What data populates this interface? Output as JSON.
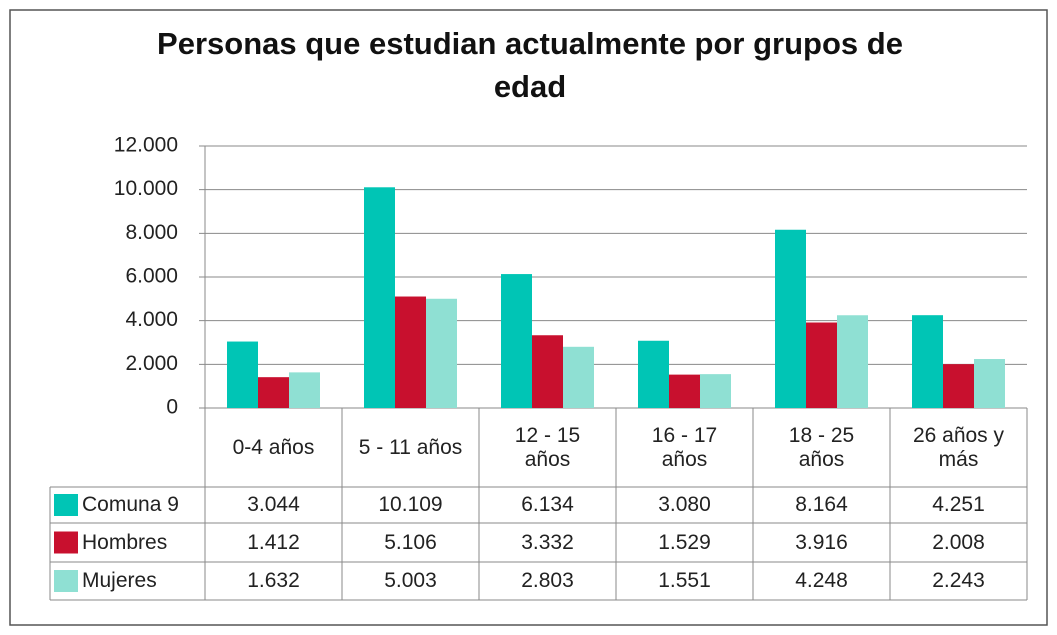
{
  "chart_data": {
    "type": "bar",
    "title": "Personas que estudian actualmente por grupos de edad",
    "categories": [
      "0-4 años",
      "5 - 11 años",
      "12 - 15 años",
      "16 - 17 años",
      "18 - 25 años",
      "26 años y más"
    ],
    "series": [
      {
        "name": "Comuna 9",
        "color": "#00c5b5",
        "values": [
          3044,
          10109,
          6134,
          3080,
          8164,
          4251
        ],
        "value_labels": [
          "3.044",
          "10.109",
          "6.134",
          "3.080",
          "8.164",
          "4.251"
        ]
      },
      {
        "name": "Hombres",
        "color": "#c8102e",
        "values": [
          1412,
          5106,
          3332,
          1529,
          3916,
          2008
        ],
        "value_labels": [
          "1.412",
          "5.106",
          "3.332",
          "1.529",
          "3.916",
          "2.008"
        ]
      },
      {
        "name": "Mujeres",
        "color": "#8fe0d3",
        "values": [
          1632,
          5003,
          2803,
          1551,
          4248,
          2243
        ],
        "value_labels": [
          "1.632",
          "5.003",
          "2.803",
          "1.551",
          "4.248",
          "2.243"
        ]
      }
    ],
    "ylim": [
      0,
      12000
    ],
    "yticks": [
      0,
      {
        "value": 2000,
        "label": "2.000"
      },
      {
        "value": 4000,
        "label": "4.000"
      },
      {
        "value": 6000,
        "label": "6.000"
      },
      {
        "value": 8000,
        "label": "8.000"
      },
      {
        "value": 10000,
        "label": "10.000"
      },
      {
        "value": 12000,
        "label": "12.000"
      }
    ],
    "grid": true,
    "data_table": true
  }
}
